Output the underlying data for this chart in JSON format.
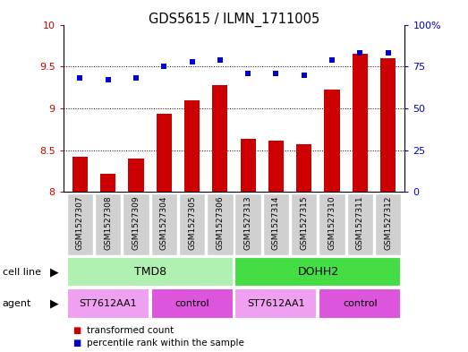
{
  "title": "GDS5615 / ILMN_1711005",
  "samples": [
    "GSM1527307",
    "GSM1527308",
    "GSM1527309",
    "GSM1527304",
    "GSM1527305",
    "GSM1527306",
    "GSM1527313",
    "GSM1527314",
    "GSM1527315",
    "GSM1527310",
    "GSM1527311",
    "GSM1527312"
  ],
  "transformed_count": [
    8.42,
    8.22,
    8.4,
    8.93,
    9.1,
    9.28,
    8.63,
    8.61,
    8.57,
    9.22,
    9.65,
    9.6
  ],
  "percentile_rank": [
    68,
    67,
    68,
    75,
    78,
    79,
    71,
    71,
    70,
    79,
    83,
    83
  ],
  "bar_color": "#cc0000",
  "dot_color": "#0000cc",
  "ylim_left": [
    8.0,
    10.0
  ],
  "ylim_right": [
    0,
    100
  ],
  "yticks_left": [
    8.0,
    8.5,
    9.0,
    9.5,
    10.0
  ],
  "ytick_labels_left": [
    "8",
    "8.5",
    "9",
    "9.5",
    "10"
  ],
  "yticks_right": [
    0,
    25,
    50,
    75,
    100
  ],
  "ytick_labels_right": [
    "0",
    "25",
    "50",
    "75",
    "100%"
  ],
  "grid_values": [
    8.5,
    9.0,
    9.5
  ],
  "cell_line_groups": [
    {
      "label": "TMD8",
      "start": 0,
      "end": 6,
      "color": "#b0f0b0"
    },
    {
      "label": "DOHH2",
      "start": 6,
      "end": 12,
      "color": "#44dd44"
    }
  ],
  "agent_groups": [
    {
      "label": "ST7612AA1",
      "start": 0,
      "end": 3,
      "color": "#f0a0f0"
    },
    {
      "label": "control",
      "start": 3,
      "end": 6,
      "color": "#dd55dd"
    },
    {
      "label": "ST7612AA1",
      "start": 6,
      "end": 9,
      "color": "#f0a0f0"
    },
    {
      "label": "control",
      "start": 9,
      "end": 12,
      "color": "#dd55dd"
    }
  ],
  "legend_items": [
    {
      "label": "transformed count",
      "color": "#cc0000"
    },
    {
      "label": "percentile rank within the sample",
      "color": "#0000cc"
    }
  ],
  "cell_line_label": "cell line",
  "agent_label": "agent",
  "left_axis_color": "#cc0000",
  "right_axis_color": "#0000cc",
  "bar_width": 0.55,
  "sample_box_color": "#d0d0d0",
  "fig_bg": "#ffffff"
}
